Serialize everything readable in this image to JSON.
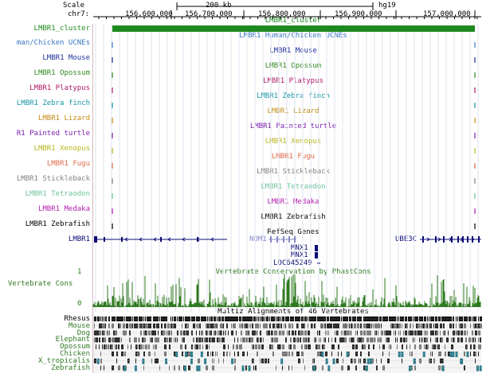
{
  "header": {
    "scale_label": "Scale",
    "scale_value": "200 kb",
    "assembly": "hg19",
    "chrom_label": "chr7:",
    "ticks": [
      "156,600,000",
      "156,700,000",
      "156,800,000",
      "156,900,000",
      "157,000,000"
    ]
  },
  "cluster_track": {
    "label": "LMBR1_cluster",
    "center_label": "LMBR1_cluster",
    "color": "#1e8a1e"
  },
  "ucne_tracks": [
    {
      "label": "man/Chicken UCNEs",
      "center_label": "LMBR1 Human/Chicken UCNEs",
      "color": "#3a76c4"
    },
    {
      "label": "LMBR1 Mouse",
      "center_label": "LMBR1 Mouse",
      "color": "#1c2e9a"
    },
    {
      "label": "LMBR1 Opossum",
      "center_label": "LMBR1 Opossum",
      "color": "#2f8a1f"
    },
    {
      "label": "LMBR1 Platypus",
      "center_label": "LMBR1 Platypus",
      "color": "#b0186c"
    },
    {
      "label": "LMBR1 Zebra finch",
      "center_label": "LMBR1 Zebra finch",
      "color": "#1596a6"
    },
    {
      "label": "LMBR1 Lizard",
      "center_label": "LMBR1 Lizard",
      "color": "#c58a12"
    },
    {
      "label": "R1 Painted turtle",
      "center_label": "LMBR1 Painted turtle",
      "color": "#7c1fb0"
    },
    {
      "label": "LMBR1 Xenopus",
      "center_label": "LMBR1 Xenopus",
      "color": "#b8b41a"
    },
    {
      "label": "LMBR1 Fugu",
      "center_label": "LMBR1 Fugu",
      "color": "#e26a4a"
    },
    {
      "label": "LMBR1 Stickleback",
      "center_label": "LMBR1 Stickleback",
      "color": "#808080"
    },
    {
      "label": "LMBR1 Tetraodon",
      "center_label": "LMBR1 Tetraodon",
      "color": "#6cc49a"
    },
    {
      "label": "LMBR1 Medaka",
      "center_label": "LMBR1 Medaka",
      "color": "#b01cac"
    },
    {
      "label": "LMBR1 Zebrafish",
      "center_label": "LMBR1 Zebrafish",
      "color": "#000000"
    }
  ],
  "refseq": {
    "title": "RefSeq Genes",
    "left_label": "LMBR1",
    "genes": [
      "NOM1",
      "MNX1",
      "MNX1",
      "LOC645249",
      "UBE3C"
    ],
    "color": "#0c0c78"
  },
  "conservation": {
    "title": "Vertebrate Conservation by PhastCons",
    "label": "Vertebrate Cons",
    "axis_top": "1",
    "axis_bottom": "0",
    "color": "#2d7a1e"
  },
  "multiz": {
    "title": "Multiz Alignments of 46 Vertebrates",
    "species": [
      {
        "name": "Rhesus",
        "color": "#000000"
      },
      {
        "name": "Mouse",
        "color": "#2f7a22"
      },
      {
        "name": "Dog",
        "color": "#2f7a22"
      },
      {
        "name": "Elephant",
        "color": "#2f7a22"
      },
      {
        "name": "Opossum",
        "color": "#2f7a22"
      },
      {
        "name": "Chicken",
        "color": "#2f7a22"
      },
      {
        "name": "X_tropicalis",
        "color": "#2f7a22"
      },
      {
        "name": "Zebrafish",
        "color": "#2f7a22"
      }
    ]
  }
}
